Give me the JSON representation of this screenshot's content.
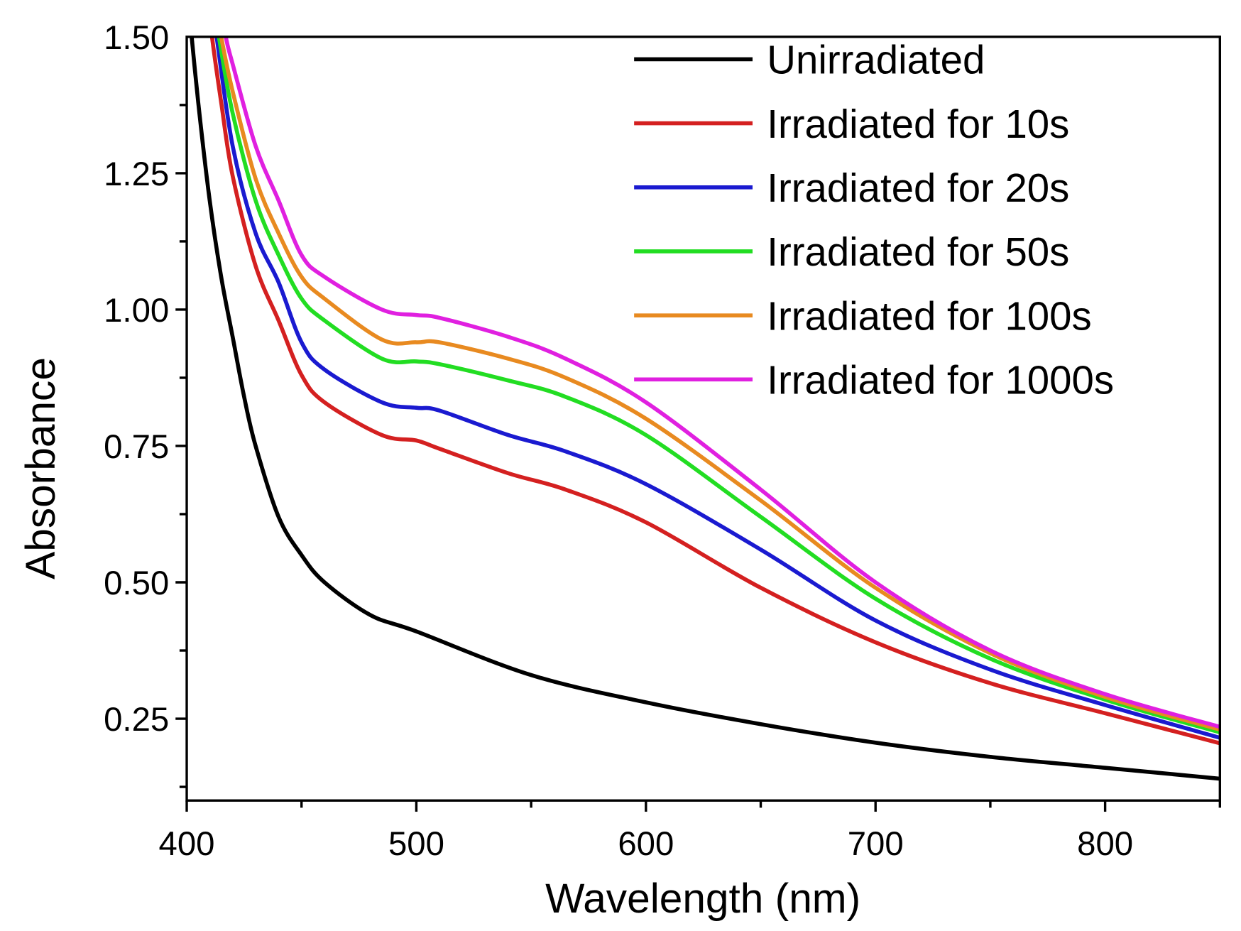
{
  "chart_data": {
    "type": "line",
    "title": "",
    "xlabel": "Wavelength (nm)",
    "ylabel": "Absorbance",
    "xlim": [
      400,
      850
    ],
    "ylim": [
      0.1,
      1.5
    ],
    "xticks": [
      400,
      500,
      600,
      700,
      800
    ],
    "xtick_labels": [
      "400",
      "500",
      "600",
      "700",
      "800"
    ],
    "yticks": [
      0.25,
      0.5,
      0.75,
      1.0,
      1.25,
      1.5
    ],
    "ytick_labels": [
      "0.25",
      "0.50",
      "0.75",
      "1.00",
      "1.25",
      "1.50"
    ],
    "grid": false,
    "legend_position": "top-right",
    "series": [
      {
        "name": "Unirradiated",
        "color": "#000000",
        "x": [
          401,
          405,
          410,
          415,
          420,
          425,
          430,
          440,
          450,
          460,
          480,
          500,
          550,
          600,
          650,
          700,
          750,
          800,
          850
        ],
        "y": [
          1.55,
          1.38,
          1.2,
          1.06,
          0.95,
          0.84,
          0.75,
          0.62,
          0.55,
          0.5,
          0.44,
          0.41,
          0.33,
          0.28,
          0.24,
          0.206,
          0.18,
          0.16,
          0.14
        ]
      },
      {
        "name": "Irradiated for 10s",
        "color": "#d42020",
        "x": [
          409,
          411,
          415,
          420,
          430,
          440,
          450,
          460,
          485,
          500,
          510,
          540,
          565,
          600,
          650,
          700,
          750,
          800,
          850
        ],
        "y": [
          1.58,
          1.5,
          1.38,
          1.245,
          1.08,
          0.98,
          0.88,
          0.83,
          0.77,
          0.76,
          0.745,
          0.7,
          0.67,
          0.61,
          0.49,
          0.39,
          0.315,
          0.26,
          0.205
        ]
      },
      {
        "name": "Irradiated for 20s",
        "color": "#1a1ad0",
        "x": [
          410,
          413,
          420,
          430,
          440,
          450,
          460,
          485,
          500,
          510,
          540,
          565,
          600,
          650,
          700,
          750,
          800,
          850
        ],
        "y": [
          1.58,
          1.5,
          1.3,
          1.14,
          1.05,
          0.94,
          0.89,
          0.83,
          0.82,
          0.815,
          0.77,
          0.74,
          0.68,
          0.56,
          0.43,
          0.34,
          0.275,
          0.215
        ]
      },
      {
        "name": "Irradiated for 50s",
        "color": "#22dd22",
        "x": [
          411,
          414,
          420,
          430,
          440,
          450,
          460,
          485,
          500,
          510,
          540,
          565,
          600,
          650,
          700,
          750,
          800,
          850
        ],
        "y": [
          1.58,
          1.5,
          1.36,
          1.2,
          1.1,
          1.02,
          0.98,
          0.91,
          0.905,
          0.9,
          0.87,
          0.84,
          0.77,
          0.62,
          0.47,
          0.36,
          0.285,
          0.225
        ]
      },
      {
        "name": "Irradiated for 100s",
        "color": "#e88a20",
        "x": [
          412,
          415,
          420,
          430,
          440,
          450,
          460,
          485,
          500,
          510,
          540,
          565,
          600,
          650,
          700,
          750,
          800,
          850
        ],
        "y": [
          1.58,
          1.5,
          1.4,
          1.24,
          1.14,
          1.06,
          1.02,
          0.945,
          0.94,
          0.94,
          0.91,
          0.875,
          0.8,
          0.65,
          0.49,
          0.37,
          0.29,
          0.23
        ]
      },
      {
        "name": "Irradiated for 1000s",
        "color": "#e020e0",
        "x": [
          414,
          417,
          420,
          430,
          440,
          450,
          460,
          485,
          500,
          510,
          540,
          565,
          600,
          650,
          700,
          750,
          800,
          850
        ],
        "y": [
          1.58,
          1.5,
          1.45,
          1.3,
          1.2,
          1.1,
          1.06,
          1.0,
          0.99,
          0.985,
          0.95,
          0.91,
          0.83,
          0.67,
          0.5,
          0.375,
          0.295,
          0.235
        ]
      }
    ]
  }
}
